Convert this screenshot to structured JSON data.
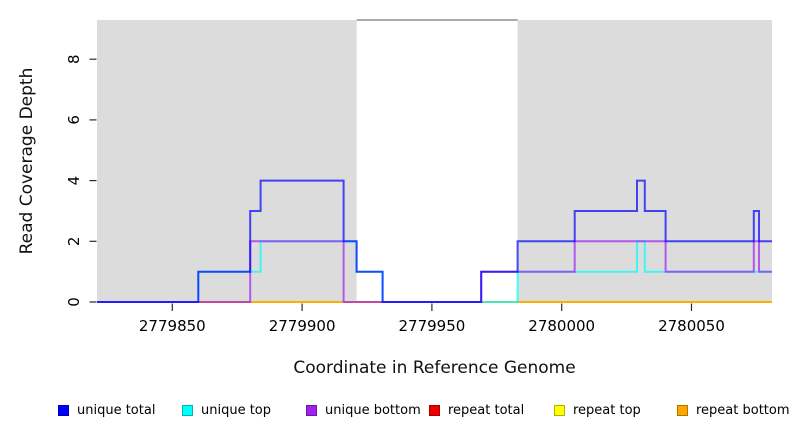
{
  "chart_data": {
    "type": "line",
    "subtype": "step-coverage",
    "title": "",
    "xlabel": "Coordinate in Reference Genome",
    "ylabel": "Read Coverage Depth",
    "xlim": [
      2779821,
      2780081
    ],
    "ylim": [
      0,
      9.3
    ],
    "x_ticks": [
      2779850,
      2779900,
      2779950,
      2780000,
      2780050
    ],
    "y_ticks": [
      0,
      2,
      4,
      6,
      8
    ],
    "grid": false,
    "legend_position": "bottom",
    "plot_background": "#ffffff",
    "shaded_region_color": "#dcdcdc",
    "shaded_regions": [
      [
        2779821,
        2779921
      ],
      [
        2779983,
        2780081
      ]
    ],
    "unshaded_gap": {
      "x_range": [
        2779921,
        2779983
      ],
      "top_border_color": "#8f8f8f"
    },
    "series": [
      {
        "name": "repeat total",
        "color": "#EE0000",
        "steps": [
          [
            2779821,
            0
          ]
        ]
      },
      {
        "name": "repeat top",
        "color": "#FFFF00",
        "steps": [
          [
            2779821,
            0
          ]
        ]
      },
      {
        "name": "repeat bottom",
        "color": "#FFA500",
        "steps": [
          [
            2779821,
            0
          ]
        ]
      },
      {
        "name": "unique top",
        "color": "#00FFFF",
        "steps": [
          [
            2779821,
            0
          ],
          [
            2779860,
            1
          ],
          [
            2779884,
            2
          ],
          [
            2779921,
            1
          ],
          [
            2779931,
            0
          ],
          [
            2779983,
            1
          ],
          [
            2780029,
            2
          ],
          [
            2780032,
            1
          ]
        ]
      },
      {
        "name": "unique bottom",
        "color": "#A020F0",
        "steps": [
          [
            2779821,
            0
          ],
          [
            2779880,
            2
          ],
          [
            2779916,
            0
          ],
          [
            2779969,
            1
          ],
          [
            2780005,
            2
          ],
          [
            2780040,
            1
          ],
          [
            2780074,
            2
          ],
          [
            2780076,
            1
          ]
        ]
      },
      {
        "name": "unique total",
        "color": "#0000FF",
        "steps": [
          [
            2779821,
            0
          ],
          [
            2779860,
            1
          ],
          [
            2779880,
            3
          ],
          [
            2779884,
            4
          ],
          [
            2779916,
            2
          ],
          [
            2779921,
            1
          ],
          [
            2779931,
            0
          ],
          [
            2779969,
            1
          ],
          [
            2779983,
            2
          ],
          [
            2780005,
            3
          ],
          [
            2780029,
            4
          ],
          [
            2780032,
            3
          ],
          [
            2780040,
            2
          ],
          [
            2780074,
            3
          ],
          [
            2780076,
            2
          ]
        ]
      }
    ],
    "legend": [
      {
        "label": "unique total",
        "color": "#0000FF"
      },
      {
        "label": "unique top",
        "color": "#00FFFF"
      },
      {
        "label": "unique bottom",
        "color": "#A020F0"
      },
      {
        "label": "repeat total",
        "color": "#EE0000"
      },
      {
        "label": "repeat top",
        "color": "#FFFF00"
      },
      {
        "label": "repeat bottom",
        "color": "#FFA500"
      }
    ]
  }
}
